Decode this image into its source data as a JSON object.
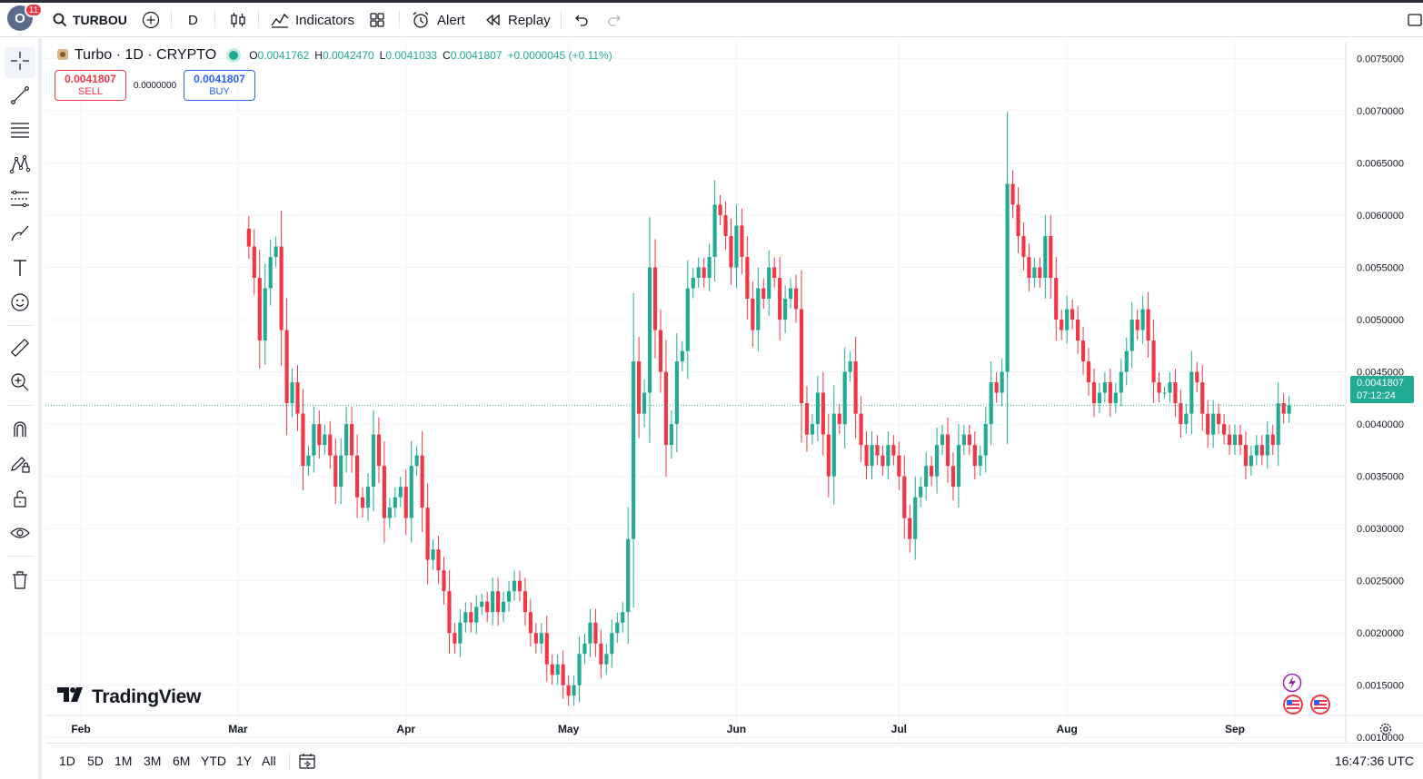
{
  "header": {
    "notification_count": "11",
    "avatar_letter": "O",
    "symbol": "TURBOU",
    "interval": "D",
    "indicators_label": "Indicators",
    "alert_label": "Alert",
    "replay_label": "Replay"
  },
  "legend": {
    "title": "Turbo · 1D · CRYPTO",
    "open_key": "O",
    "open": "0.0041762",
    "high_key": "H",
    "high": "0.0042470",
    "low_key": "L",
    "low": "0.0041033",
    "close_key": "C",
    "close": "0.0041807",
    "change": "+0.0000045 (+0.11%)"
  },
  "trade": {
    "sell_price": "0.0041807",
    "sell_label": "SELL",
    "spread": "0.0000000",
    "buy_price": "0.0041807",
    "buy_label": "BUY"
  },
  "price_axis": {
    "current_price": "0.0041807",
    "countdown": "07:12:24"
  },
  "brand": {
    "logo_text": "TradingView"
  },
  "bottom": {
    "ranges": [
      "1D",
      "5D",
      "1M",
      "3M",
      "6M",
      "YTD",
      "1Y",
      "All"
    ],
    "clock": "16:47:36 UTC"
  },
  "colors": {
    "up": "#22ab94",
    "down": "#f23645",
    "accent": "#2962ff"
  },
  "chart_data": {
    "type": "candlestick",
    "interval": "1D",
    "ylim": [
      0.00095,
      0.00766
    ],
    "y_ticks": [
      "0.0075000",
      "0.0070000",
      "0.0065000",
      "0.0060000",
      "0.0055000",
      "0.0050000",
      "0.0045000",
      "0.0040000",
      "0.0035000",
      "0.0030000",
      "0.0025000",
      "0.0020000",
      "0.0015000",
      "0.0010000"
    ],
    "x_labels": [
      "Feb",
      "Mar",
      "Apr",
      "May",
      "Jun",
      "Jul",
      "Aug",
      "Sep"
    ],
    "x_label_dates": [
      "2024-02-01",
      "2024-03-01",
      "2024-04-01",
      "2024-05-01",
      "2024-06-01",
      "2024-07-01",
      "2024-08-01",
      "2024-09-01"
    ],
    "last_date": "2024-09-11",
    "closes": [
      0.0057,
      0.0054,
      0.0048,
      0.0053,
      0.0056,
      0.0057,
      0.0049,
      0.0042,
      0.0044,
      0.0041,
      0.0036,
      0.0037,
      0.004,
      0.0038,
      0.0039,
      0.0037,
      0.0034,
      0.0037,
      0.004,
      0.0037,
      0.0033,
      0.0032,
      0.0034,
      0.0039,
      0.0036,
      0.0031,
      0.0032,
      0.0033,
      0.0034,
      0.0031,
      0.0036,
      0.0037,
      0.0032,
      0.0027,
      0.0028,
      0.0026,
      0.0024,
      0.002,
      0.0019,
      0.0021,
      0.0022,
      0.0021,
      0.00225,
      0.0023,
      0.0022,
      0.0024,
      0.0022,
      0.0023,
      0.0024,
      0.0025,
      0.0024,
      0.0022,
      0.002,
      0.0019,
      0.002,
      0.0017,
      0.0016,
      0.0017,
      0.0015,
      0.0014,
      0.0015,
      0.0018,
      0.0019,
      0.0021,
      0.0019,
      0.0017,
      0.0018,
      0.002,
      0.0021,
      0.0022,
      0.0029,
      0.0046,
      0.0041,
      0.0043,
      0.0055,
      0.0049,
      0.0045,
      0.0038,
      0.004,
      0.0046,
      0.0047,
      0.0053,
      0.0054,
      0.0055,
      0.0054,
      0.0056,
      0.0061,
      0.006,
      0.0058,
      0.0055,
      0.0059,
      0.0056,
      0.0052,
      0.0049,
      0.0053,
      0.0052,
      0.0055,
      0.0054,
      0.005,
      0.0052,
      0.0053,
      0.0051,
      0.0042,
      0.0039,
      0.004,
      0.0043,
      0.0039,
      0.0035,
      0.0041,
      0.004,
      0.0045,
      0.0046,
      0.0041,
      0.0038,
      0.0036,
      0.0038,
      0.0037,
      0.0036,
      0.0038,
      0.0037,
      0.0035,
      0.0031,
      0.0029,
      0.0033,
      0.0034,
      0.0036,
      0.0035,
      0.0038,
      0.0039,
      0.0036,
      0.0034,
      0.0038,
      0.0039,
      0.0038,
      0.0036,
      0.0037,
      0.004,
      0.0044,
      0.0043,
      0.0045,
      0.0063,
      0.0061,
      0.0058,
      0.0056,
      0.0054,
      0.0055,
      0.0054,
      0.0058,
      0.0054,
      0.005,
      0.0049,
      0.0051,
      0.005,
      0.0048,
      0.0046,
      0.0044,
      0.0042,
      0.0043,
      0.0044,
      0.0042,
      0.0043,
      0.0045,
      0.0047,
      0.005,
      0.0049,
      0.0051,
      0.0048,
      0.0044,
      0.0043,
      0.0043,
      0.0044,
      0.0042,
      0.004,
      0.0041,
      0.0045,
      0.0044,
      0.0041,
      0.0039,
      0.0041,
      0.004,
      0.0039,
      0.0038,
      0.0039,
      0.0038,
      0.0036,
      0.0037,
      0.0038,
      0.0037,
      0.0039,
      0.0038,
      0.0042,
      0.0041,
      0.0041807
    ]
  }
}
